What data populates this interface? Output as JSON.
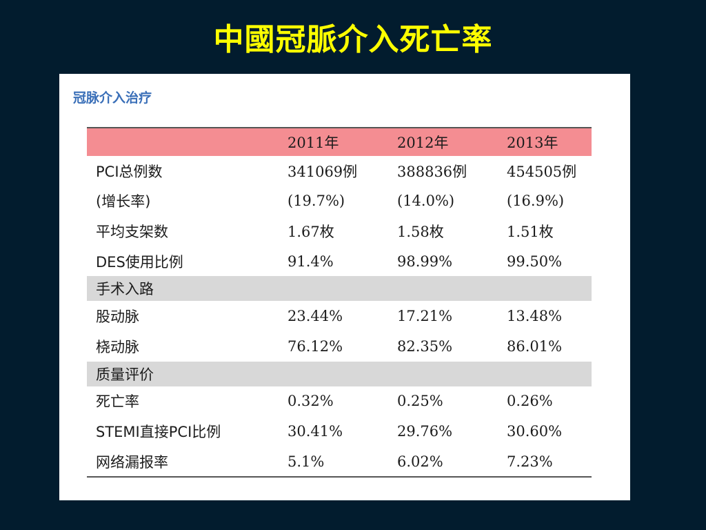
{
  "slide": {
    "title": "中國冠脈介入死亡率"
  },
  "panel": {
    "heading": "冠脉介入治疗"
  },
  "table": {
    "columns": [
      "",
      "2011年",
      "2012年",
      "2013年"
    ],
    "rows": [
      {
        "type": "data",
        "cells": [
          "PCI总例数",
          "341069例",
          "388836例",
          "454505例"
        ]
      },
      {
        "type": "data",
        "cells": [
          "(增长率)",
          "(19.7%)",
          "(14.0%)",
          "(16.9%)"
        ]
      },
      {
        "type": "data",
        "cells": [
          "平均支架数",
          "1.67枚",
          "1.58枚",
          "1.51枚"
        ]
      },
      {
        "type": "data",
        "cells": [
          "DES使用比例",
          "91.4%",
          "98.99%",
          "99.50%"
        ]
      },
      {
        "type": "section",
        "cells": [
          "手术入路",
          "",
          "",
          ""
        ]
      },
      {
        "type": "data",
        "cells": [
          "股动脉",
          "23.44%",
          "17.21%",
          "13.48%"
        ]
      },
      {
        "type": "data",
        "cells": [
          "桡动脉",
          "76.12%",
          "82.35%",
          "86.01%"
        ]
      },
      {
        "type": "section",
        "cells": [
          "质量评价",
          "",
          "",
          ""
        ]
      },
      {
        "type": "data",
        "cells": [
          "死亡率",
          "0.32%",
          "0.25%",
          "0.26%"
        ]
      },
      {
        "type": "data",
        "cells": [
          "STEMI直接PCI比例",
          "30.41%",
          "29.76%",
          "30.60%"
        ]
      },
      {
        "type": "data",
        "cells": [
          "网络漏报率",
          "5.1%",
          "6.02%",
          "7.23%"
        ]
      }
    ]
  },
  "colors": {
    "background": "#021c2e",
    "title": "#ffff00",
    "header_row": "#f48d92",
    "section_row": "#d8d8d8",
    "panel_heading": "#3a6fb8"
  }
}
